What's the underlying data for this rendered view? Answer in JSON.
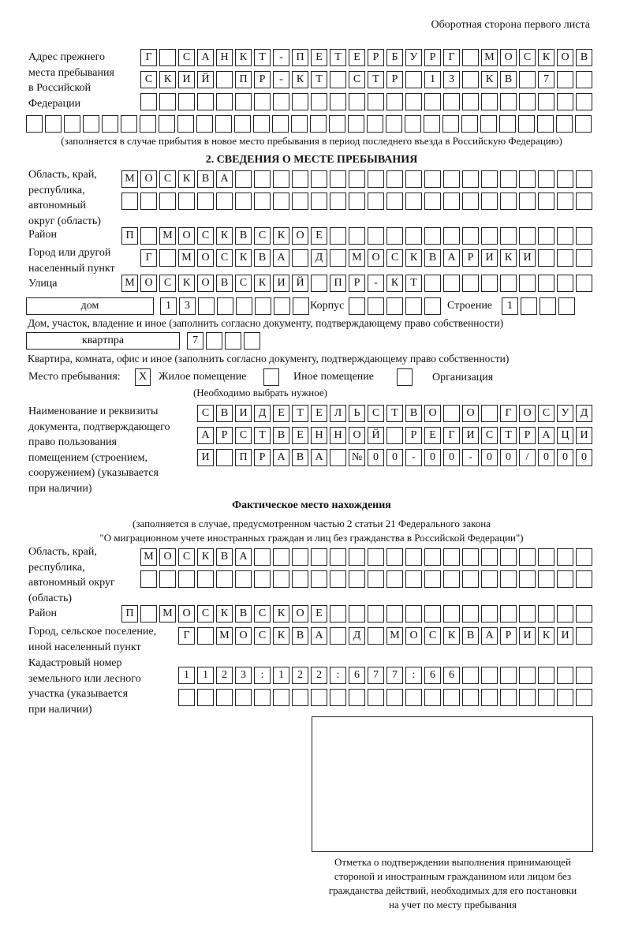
{
  "header": "Оборотная сторона первого листа",
  "previous_address": {
    "label": [
      "Адрес прежнего",
      "места пребывания",
      "в Российской",
      "Федерации"
    ],
    "rows": [
      [
        "Г",
        "",
        "С",
        "А",
        "Н",
        "К",
        "Т",
        "-",
        "П",
        "Е",
        "Т",
        "Е",
        "Р",
        "Б",
        "У",
        "Р",
        "Г",
        "",
        "М",
        "О",
        "С",
        "К",
        "О",
        "В"
      ],
      [
        "С",
        "К",
        "И",
        "Й",
        "",
        "П",
        "Р",
        "-",
        "К",
        "Т",
        "",
        "С",
        "Т",
        "Р",
        "",
        "1",
        "3",
        "",
        "К",
        "В",
        "",
        "7",
        "",
        ""
      ],
      [
        "",
        "",
        "",
        "",
        "",
        "",
        "",
        "",
        "",
        "",
        "",
        "",
        "",
        "",
        "",
        "",
        "",
        "",
        "",
        "",
        "",
        "",
        "",
        ""
      ],
      [
        "",
        "",
        "",
        "",
        "",
        "",
        "",
        "",
        "",
        "",
        "",
        "",
        "",
        "",
        "",
        "",
        "",
        "",
        "",
        "",
        "",
        "",
        "",
        "",
        "",
        "",
        "",
        "",
        "",
        ""
      ]
    ],
    "note": "(заполняется в случае прибытия в новое место пребывания в период последнего въезда в Российскую Федерацию)"
  },
  "section2": {
    "title": "2. СВЕДЕНИЯ О МЕСТЕ ПРЕБЫВАНИЯ",
    "region_label": [
      "Область, край,",
      "республика,",
      "автономный",
      "округ (область)"
    ],
    "region_rows": [
      [
        "М",
        "О",
        "С",
        "К",
        "В",
        "А",
        "",
        "",
        "",
        "",
        "",
        "",
        "",
        "",
        "",
        "",
        "",
        "",
        "",
        "",
        "",
        "",
        "",
        "",
        ""
      ],
      [
        "",
        "",
        "",
        "",
        "",
        "",
        "",
        "",
        "",
        "",
        "",
        "",
        "",
        "",
        "",
        "",
        "",
        "",
        "",
        "",
        "",
        "",
        "",
        "",
        ""
      ]
    ],
    "district_label": "Район",
    "district_row": [
      "П",
      "",
      "М",
      "О",
      "С",
      "К",
      "В",
      "С",
      "К",
      "О",
      "Е",
      "",
      "",
      "",
      "",
      "",
      "",
      "",
      "",
      "",
      "",
      "",
      "",
      "",
      ""
    ],
    "city_label": [
      "Город или другой",
      "населенный пункт"
    ],
    "city_row": [
      "Г",
      "",
      "М",
      "О",
      "С",
      "К",
      "В",
      "А",
      "",
      "Д",
      "",
      "М",
      "О",
      "С",
      "К",
      "В",
      "А",
      "Р",
      "И",
      "К",
      "И",
      "",
      "",
      ""
    ],
    "street_label": "Улица",
    "street_row": [
      "М",
      "О",
      "С",
      "К",
      "О",
      "В",
      "С",
      "К",
      "И",
      "Й",
      "",
      "П",
      "Р",
      "-",
      "К",
      "Т",
      "",
      "",
      "",
      "",
      "",
      "",
      "",
      "",
      ""
    ],
    "house_type": "дом",
    "house_cells": [
      "1",
      "3",
      "",
      "",
      "",
      "",
      "",
      ""
    ],
    "korpus_label": "Корпус",
    "korpus_cells": [
      "",
      "",
      "",
      "",
      ""
    ],
    "building_label": "Строение",
    "building_cells": [
      "1",
      "",
      "",
      ""
    ],
    "house_note": "Дом, участок, владение и иное (заполнить согласно документу, подтверждающему право собственности)",
    "flat_type": "квартпра",
    "flat_cells": [
      "7",
      "",
      "",
      ""
    ],
    "flat_note": "Квартира, комната, офис и иное (заполнить согласно документу, подтверждающему право собственности)",
    "stay_place_label": "Место пребывания:",
    "options": [
      {
        "label": "Жилое помещение",
        "mark": "X"
      },
      {
        "label": "Иное помещение",
        "mark": ""
      },
      {
        "label": "Организация",
        "mark": ""
      }
    ],
    "choose_note": "(Необходимо выбрать нужное)",
    "doc_label": [
      "Наименование и реквизиты",
      "документа, подтверждающего",
      "право пользования",
      "помещением (строением,",
      "сооружением) (указывается",
      "при наличии)"
    ],
    "doc_rows": [
      [
        "С",
        "В",
        "И",
        "Д",
        "Е",
        "Т",
        "Е",
        "Л",
        "Ь",
        "С",
        "Т",
        "В",
        "О",
        "",
        "О",
        "",
        "Г",
        "О",
        "С",
        "У",
        "Д"
      ],
      [
        "А",
        "Р",
        "С",
        "Т",
        "В",
        "Е",
        "Н",
        "Н",
        "О",
        "Й",
        "",
        "Р",
        "Е",
        "Г",
        "И",
        "С",
        "Т",
        "Р",
        "А",
        "Ц",
        "И"
      ],
      [
        "И",
        "",
        "П",
        "Р",
        "А",
        "В",
        "А",
        "",
        "№",
        "0",
        "0",
        "-",
        "0",
        "0",
        "-",
        "0",
        "0",
        "/",
        "0",
        "0",
        "0"
      ]
    ]
  },
  "actual": {
    "title": "Фактическое место нахождения",
    "note": [
      "(заполняется в случае, предусмотренном частью 2 статьи 21 Федерального закона",
      "\"О миграционном учете иностранных граждан и лиц без гражданства в Российской Федерации\")"
    ],
    "region_label": [
      "Область, край,",
      "республика,",
      "автономный округ",
      "(область)"
    ],
    "region_rows": [
      [
        "М",
        "О",
        "С",
        "К",
        "В",
        "А",
        "",
        "",
        "",
        "",
        "",
        "",
        "",
        "",
        "",
        "",
        "",
        "",
        "",
        "",
        "",
        "",
        "",
        ""
      ],
      [
        "",
        "",
        "",
        "",
        "",
        "",
        "",
        "",
        "",
        "",
        "",
        "",
        "",
        "",
        "",
        "",
        "",
        "",
        "",
        "",
        "",
        "",
        "",
        ""
      ]
    ],
    "district_label": "Район",
    "district_row": [
      "П",
      "",
      "М",
      "О",
      "С",
      "К",
      "В",
      "С",
      "К",
      "О",
      "Е",
      "",
      "",
      "",
      "",
      "",
      "",
      "",
      "",
      "",
      "",
      "",
      "",
      "",
      ""
    ],
    "city_label": [
      "Город, сельское поселение,",
      "иной населенный пункт"
    ],
    "city_row": [
      "Г",
      "",
      "М",
      "О",
      "С",
      "К",
      "В",
      "А",
      "",
      "Д",
      "",
      "М",
      "О",
      "С",
      "К",
      "В",
      "А",
      "Р",
      "И",
      "К",
      "И",
      ""
    ],
    "cadastral_label": [
      "Кадастровый номер",
      "земельного или лесного",
      "участка (указывается",
      "при наличии)"
    ],
    "cadastral_rows": [
      [
        "1",
        "1",
        "2",
        "3",
        ":",
        "1",
        "2",
        "2",
        ":",
        "6",
        "7",
        "7",
        ":",
        "6",
        "6",
        "",
        "",
        "",
        "",
        "",
        "",
        ""
      ],
      [
        "",
        "",
        "",
        "",
        "",
        "",
        "",
        "",
        "",
        "",
        "",
        "",
        "",
        "",
        "",
        "",
        "",
        "",
        "",
        "",
        "",
        ""
      ]
    ]
  },
  "stamp_caption": [
    "Отметка о подтверждении выполнения принимающей",
    "стороной и иностранным гражданином или лицом без",
    "гражданства действий, необходимых для его постановки",
    "на учет по месту пребывания"
  ]
}
